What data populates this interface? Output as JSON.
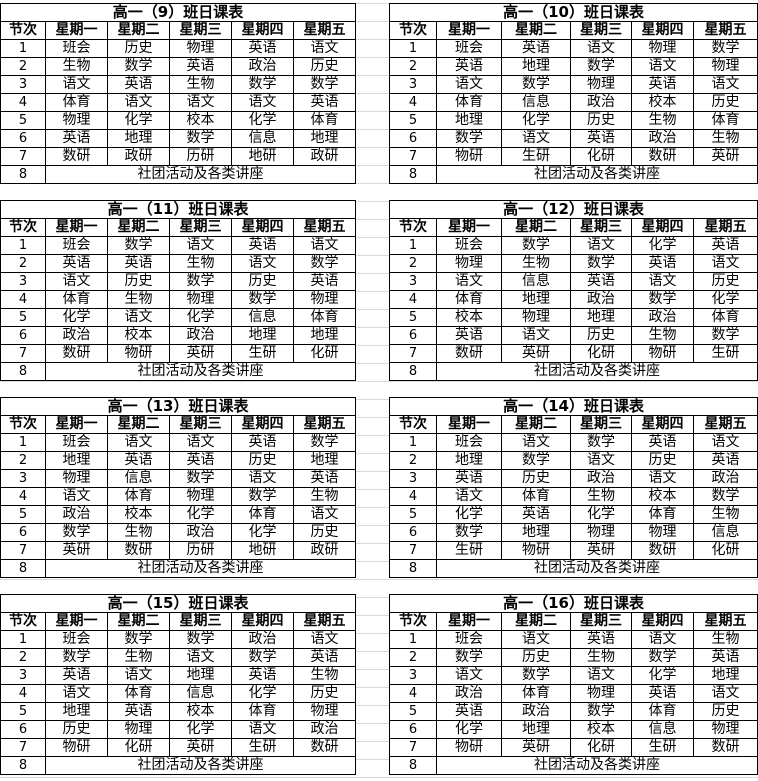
{
  "header_labels": [
    "节次",
    "星期一",
    "星期二",
    "星期三",
    "星期四",
    "星期五"
  ],
  "activity_label": "社团活动及各类讲座",
  "period_numbers": [
    "1",
    "2",
    "3",
    "4",
    "5",
    "6",
    "7",
    "8"
  ],
  "tables": [
    {
      "title": "高一（9）班日课表",
      "rows": [
        [
          "班会",
          "历史",
          "物理",
          "英语",
          "语文"
        ],
        [
          "生物",
          "数学",
          "英语",
          "政治",
          "历史"
        ],
        [
          "语文",
          "英语",
          "生物",
          "数学",
          "数学"
        ],
        [
          "体育",
          "语文",
          "语文",
          "语文",
          "英语"
        ],
        [
          "物理",
          "化学",
          "校本",
          "化学",
          "体育"
        ],
        [
          "英语",
          "地理",
          "数学",
          "信息",
          "地理"
        ],
        [
          "数研",
          "政研",
          "历研",
          "地研",
          "政研"
        ]
      ]
    },
    {
      "title": "高一（10）班日课表",
      "rows": [
        [
          "班会",
          "英语",
          "语文",
          "物理",
          "数学"
        ],
        [
          "英语",
          "地理",
          "数学",
          "语文",
          "物理"
        ],
        [
          "语文",
          "数学",
          "物理",
          "英语",
          "语文"
        ],
        [
          "体育",
          "信息",
          "政治",
          "校本",
          "历史"
        ],
        [
          "地理",
          "化学",
          "历史",
          "生物",
          "体育"
        ],
        [
          "数学",
          "语文",
          "英语",
          "政治",
          "生物"
        ],
        [
          "物研",
          "生研",
          "化研",
          "数研",
          "英研"
        ]
      ]
    },
    {
      "title": "高一（11）班日课表",
      "rows": [
        [
          "班会",
          "数学",
          "语文",
          "英语",
          "语文"
        ],
        [
          "英语",
          "英语",
          "生物",
          "语文",
          "数学"
        ],
        [
          "语文",
          "历史",
          "数学",
          "历史",
          "英语"
        ],
        [
          "体育",
          "生物",
          "物理",
          "数学",
          "物理"
        ],
        [
          "化学",
          "语文",
          "化学",
          "信息",
          "体育"
        ],
        [
          "政治",
          "校本",
          "政治",
          "地理",
          "地理"
        ],
        [
          "数研",
          "物研",
          "英研",
          "生研",
          "化研"
        ]
      ]
    },
    {
      "title": "高一（12）班日课表",
      "rows": [
        [
          "班会",
          "数学",
          "语文",
          "化学",
          "英语"
        ],
        [
          "物理",
          "生物",
          "数学",
          "英语",
          "语文"
        ],
        [
          "语文",
          "信息",
          "英语",
          "语文",
          "历史"
        ],
        [
          "体育",
          "地理",
          "政治",
          "数学",
          "化学"
        ],
        [
          "校本",
          "物理",
          "地理",
          "政治",
          "体育"
        ],
        [
          "英语",
          "语文",
          "历史",
          "生物",
          "数学"
        ],
        [
          "数研",
          "英研",
          "化研",
          "物研",
          "生研"
        ]
      ]
    },
    {
      "title": "高一（13）班日课表",
      "rows": [
        [
          "班会",
          "语文",
          "语文",
          "英语",
          "数学"
        ],
        [
          "地理",
          "英语",
          "英语",
          "历史",
          "地理"
        ],
        [
          "物理",
          "信息",
          "数学",
          "语文",
          "英语"
        ],
        [
          "语文",
          "体育",
          "物理",
          "数学",
          "生物"
        ],
        [
          "政治",
          "校本",
          "化学",
          "体育",
          "语文"
        ],
        [
          "数学",
          "生物",
          "政治",
          "化学",
          "历史"
        ],
        [
          "英研",
          "数研",
          "历研",
          "地研",
          "政研"
        ]
      ]
    },
    {
      "title": "高一（14）班日课表",
      "rows": [
        [
          "班会",
          "语文",
          "数学",
          "英语",
          "语文"
        ],
        [
          "地理",
          "数学",
          "语文",
          "历史",
          "英语"
        ],
        [
          "英语",
          "历史",
          "政治",
          "语文",
          "政治"
        ],
        [
          "语文",
          "体育",
          "生物",
          "校本",
          "数学"
        ],
        [
          "化学",
          "英语",
          "化学",
          "体育",
          "生物"
        ],
        [
          "数学",
          "地理",
          "物理",
          "物理",
          "信息"
        ],
        [
          "生研",
          "物研",
          "英研",
          "数研",
          "化研"
        ]
      ]
    },
    {
      "title": "高一（15）班日课表",
      "rows": [
        [
          "班会",
          "数学",
          "数学",
          "政治",
          "语文"
        ],
        [
          "数学",
          "生物",
          "语文",
          "数学",
          "英语"
        ],
        [
          "英语",
          "语文",
          "地理",
          "英语",
          "生物"
        ],
        [
          "语文",
          "体育",
          "信息",
          "化学",
          "历史"
        ],
        [
          "地理",
          "英语",
          "校本",
          "体育",
          "物理"
        ],
        [
          "历史",
          "物理",
          "化学",
          "语文",
          "政治"
        ],
        [
          "物研",
          "化研",
          "英研",
          "生研",
          "数研"
        ]
      ]
    },
    {
      "title": "高一（16）班日课表",
      "rows": [
        [
          "班会",
          "语文",
          "英语",
          "语文",
          "生物"
        ],
        [
          "数学",
          "历史",
          "生物",
          "数学",
          "英语"
        ],
        [
          "语文",
          "数学",
          "语文",
          "化学",
          "地理"
        ],
        [
          "政治",
          "体育",
          "物理",
          "英语",
          "语文"
        ],
        [
          "英语",
          "政治",
          "数学",
          "体育",
          "历史"
        ],
        [
          "化学",
          "地理",
          "校本",
          "信息",
          "物理"
        ],
        [
          "物研",
          "英研",
          "化研",
          "生研",
          "数研"
        ]
      ]
    }
  ]
}
